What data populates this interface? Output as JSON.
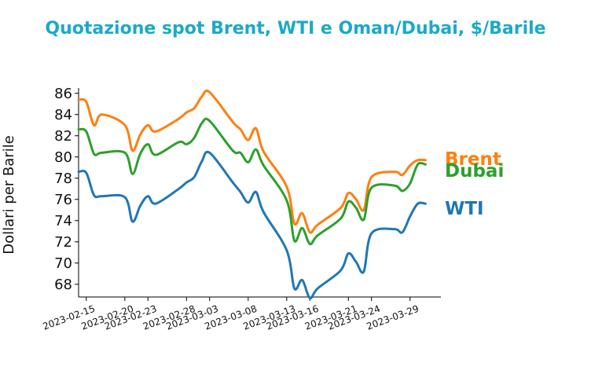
{
  "chart_data": {
    "type": "line",
    "title": "Quotazione spot Brent, WTI e Oman/Dubai, $/Barile",
    "xlabel": "",
    "ylabel": "Dollari per Barile",
    "ylim": [
      66.8,
      86.5
    ],
    "xlim": [
      "2023-02-14",
      "2023-04-02"
    ],
    "y_ticks": [
      68,
      70,
      72,
      74,
      76,
      78,
      80,
      82,
      84,
      86
    ],
    "x_ticks": [
      "2023-02-15",
      "2023-02-20",
      "2023-02-23",
      "2023-02-28",
      "2023-03-03",
      "2023-03-08",
      "2023-03-13",
      "2023-03-16",
      "2023-03-21",
      "2023-03-24",
      "2023-03-29"
    ],
    "grid": false,
    "legend": "direct labels at right end of lines",
    "x": [
      "2023-02-14",
      "2023-02-15",
      "2023-02-16",
      "2023-02-17",
      "2023-02-20",
      "2023-02-21",
      "2023-02-22",
      "2023-02-23",
      "2023-02-24",
      "2023-02-27",
      "2023-02-28",
      "2023-03-01",
      "2023-03-02",
      "2023-03-03",
      "2023-03-06",
      "2023-03-07",
      "2023-03-08",
      "2023-03-09",
      "2023-03-10",
      "2023-03-13",
      "2023-03-14",
      "2023-03-15",
      "2023-03-16",
      "2023-03-17",
      "2023-03-20",
      "2023-03-21",
      "2023-03-22",
      "2023-03-23",
      "2023-03-24",
      "2023-03-27",
      "2023-03-28",
      "2023-03-29",
      "2023-03-30",
      "2023-03-31"
    ],
    "series": [
      {
        "name": "Brent",
        "color": "#ff7f0e",
        "values": [
          85.4,
          85.2,
          83.0,
          84.0,
          83.0,
          80.6,
          82.1,
          83.0,
          82.4,
          83.6,
          84.2,
          84.6,
          85.7,
          86.1,
          83.3,
          82.6,
          81.6,
          82.7,
          80.5,
          77.2,
          73.7,
          74.7,
          72.9,
          73.6,
          75.2,
          76.6,
          76.0,
          75.0,
          78.1,
          78.6,
          78.3,
          79.2,
          79.7,
          79.7
        ]
      },
      {
        "name": "Dubai",
        "color": "#2ca02c",
        "values": [
          82.6,
          82.4,
          80.3,
          80.4,
          80.4,
          78.4,
          80.3,
          81.2,
          80.2,
          81.4,
          81.2,
          81.8,
          83.2,
          83.4,
          80.6,
          80.4,
          79.5,
          80.7,
          79.2,
          75.9,
          72.1,
          73.3,
          71.8,
          72.6,
          74.2,
          75.8,
          75.2,
          74.1,
          77.1,
          77.3,
          76.8,
          77.5,
          79.3,
          79.3
        ]
      },
      {
        "name": "WTI",
        "color": "#1f77b4",
        "values": [
          78.6,
          78.5,
          76.4,
          76.3,
          76.2,
          73.9,
          75.4,
          76.3,
          75.6,
          77.0,
          77.6,
          78.1,
          79.6,
          80.4,
          77.6,
          76.7,
          75.7,
          76.7,
          74.8,
          71.2,
          67.6,
          68.4,
          66.7,
          67.6,
          69.3,
          70.9,
          70.1,
          69.2,
          72.8,
          73.2,
          72.9,
          74.4,
          75.6,
          75.6
        ]
      }
    ]
  }
}
